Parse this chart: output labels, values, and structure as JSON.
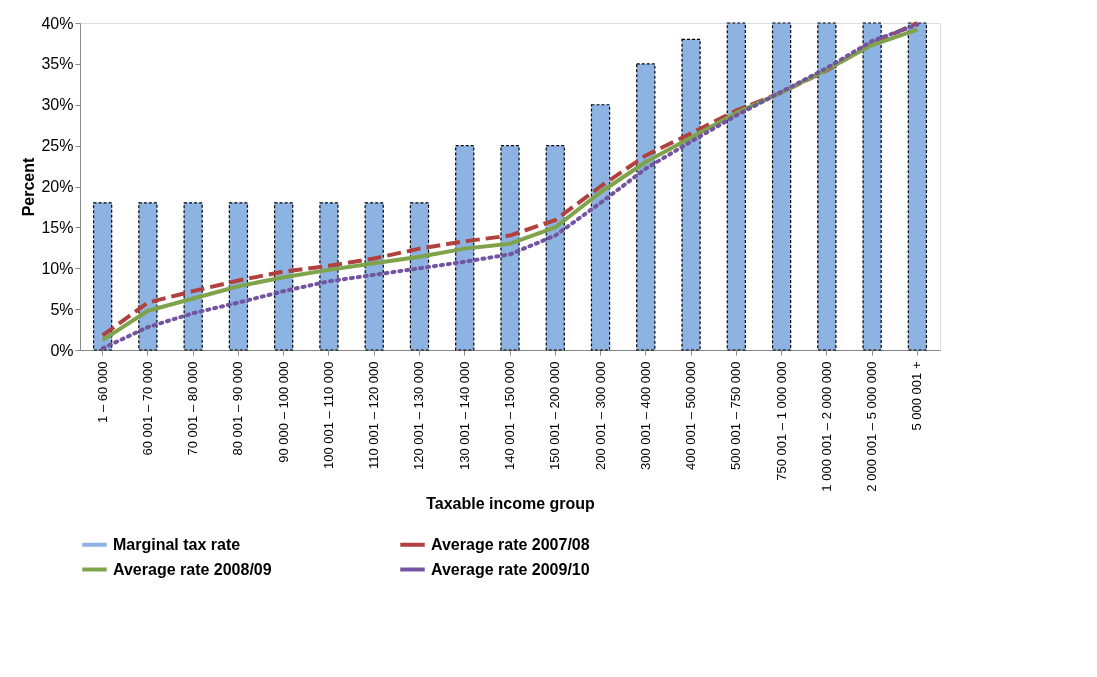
{
  "chart_data": {
    "type": "bar",
    "xlabel": "Taxable income group",
    "ylabel": "Percent",
    "categories": [
      "1 – 60 000",
      "60 001 – 70 000",
      "70 001 – 80 000",
      "80 001 – 90 000",
      "90 000 – 100 000",
      "100 001 – 110 000",
      "110 001 – 120 000",
      "120 001 – 130 000",
      "130 001 – 140 000",
      "140 001 – 150 000",
      "150 001 – 200 000",
      "200 001 – 300 000",
      "300 001 – 400 000",
      "400 001 – 500 000",
      "500 001 – 750 000",
      "750 001 – 1 000 000",
      "1 000 001 – 2 000 000",
      "2 000 001 – 5 000 000",
      "5 000 001 +"
    ],
    "series": [
      {
        "name": "Marginal tax  rate",
        "color": "#8db3e2",
        "values": [
          18,
          18,
          18,
          18,
          18,
          18,
          18,
          18,
          25,
          25,
          25,
          30,
          35,
          38,
          40,
          40,
          40,
          40,
          40
        ]
      },
      {
        "name": "Average rate 2007/08",
        "type": "line",
        "line_style": "dashed",
        "color": "#b0413e",
        "values": [
          1.8,
          5.8,
          7.2,
          8.5,
          9.6,
          10.3,
          11.2,
          12.4,
          13.3,
          14.0,
          15.9,
          20.0,
          23.8,
          26.5,
          29.3,
          31.5,
          34.2,
          37.5,
          40.0
        ]
      },
      {
        "name": "Average rate 2008/09",
        "type": "line",
        "line_style": "solid",
        "color": "#7fa34a",
        "values": [
          1.2,
          4.8,
          6.3,
          7.8,
          8.9,
          9.8,
          10.6,
          11.4,
          12.4,
          13.0,
          15.0,
          19.3,
          23.0,
          26.0,
          29.0,
          31.5,
          34.3,
          37.3,
          39.2
        ]
      },
      {
        "name": "Average rate 2009/10",
        "type": "line",
        "line_style": "dotted",
        "color": "#7354a0",
        "values": [
          0.2,
          2.8,
          4.5,
          5.8,
          7.2,
          8.4,
          9.2,
          10.0,
          10.8,
          11.7,
          14.0,
          18.0,
          22.2,
          25.5,
          28.7,
          31.6,
          34.5,
          37.8,
          39.8
        ]
      }
    ],
    "ylim": [
      0,
      40
    ],
    "yticks": [
      {
        "value": 0,
        "label": "0%"
      },
      {
        "value": 5,
        "label": "5%"
      },
      {
        "value": 10,
        "label": "10%"
      },
      {
        "value": 15,
        "label": "15%"
      },
      {
        "value": 20,
        "label": "20%"
      },
      {
        "value": 25,
        "label": "25%"
      },
      {
        "value": 30,
        "label": "30%"
      },
      {
        "value": 35,
        "label": "35%"
      },
      {
        "value": 40,
        "label": "40%"
      }
    ],
    "grid": false,
    "legend": "bottom",
    "marker": "none"
  }
}
